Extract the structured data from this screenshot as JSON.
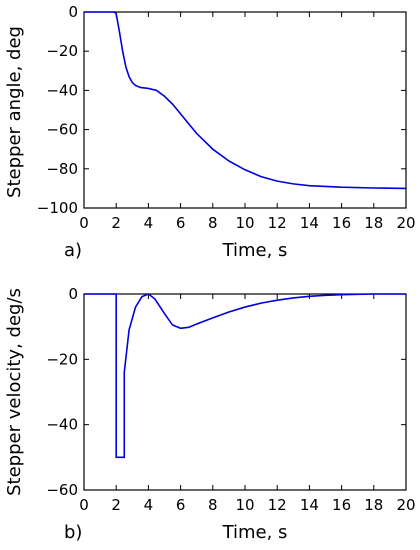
{
  "chart_data": [
    {
      "type": "line",
      "panel_label": "a)",
      "xlabel": "Time, s",
      "ylabel": "Stepper angle, deg",
      "xlim": [
        0,
        20
      ],
      "ylim": [
        -100,
        0
      ],
      "xticks": [
        0,
        2,
        4,
        6,
        8,
        10,
        12,
        14,
        16,
        18,
        20
      ],
      "yticks": [
        0,
        -20,
        -40,
        -60,
        -80,
        -100
      ],
      "grid": false,
      "line_color": "#0000dd",
      "series": [
        {
          "x": [
            0,
            1.9,
            2.0,
            2.2,
            2.4,
            2.6,
            2.8,
            3.0,
            3.2,
            3.5,
            4.0,
            4.5,
            5.0,
            5.5,
            6.0,
            6.5,
            7.0,
            7.5,
            8.0,
            9.0,
            10.0,
            11.0,
            12.0,
            13.0,
            14.0,
            16.0,
            18.0,
            20.0
          ],
          "y": [
            0,
            0,
            -1,
            -10,
            -20,
            -28,
            -33,
            -36,
            -37.5,
            -38.5,
            -39,
            -40,
            -43,
            -47,
            -52,
            -57,
            -62,
            -66,
            -70,
            -76,
            -80.5,
            -84,
            -86.3,
            -87.7,
            -88.6,
            -89.4,
            -89.8,
            -90
          ]
        }
      ]
    },
    {
      "type": "line",
      "panel_label": "b)",
      "xlabel": "Time, s",
      "ylabel": "Stepper velocity, deg/s",
      "xlim": [
        0,
        20
      ],
      "ylim": [
        -60,
        0
      ],
      "xticks": [
        0,
        2,
        4,
        6,
        8,
        10,
        12,
        14,
        16,
        18,
        20
      ],
      "yticks": [
        0,
        -20,
        -40,
        -60
      ],
      "grid": false,
      "line_color": "#0000dd",
      "series": [
        {
          "x": [
            0,
            2.0,
            2.0,
            2.5,
            2.5,
            2.8,
            3.2,
            3.6,
            4.0,
            4.4,
            5.0,
            5.5,
            6.0,
            6.5,
            7.0,
            8.0,
            9.0,
            10.0,
            11.0,
            12.0,
            13.0,
            14.0,
            15.0,
            16.0,
            18.0,
            20.0
          ],
          "y": [
            0,
            0,
            -50,
            -50,
            -24,
            -11,
            -4,
            -0.8,
            0,
            -1.5,
            -6,
            -9.5,
            -10.5,
            -10.2,
            -9.2,
            -7.3,
            -5.5,
            -4.0,
            -2.8,
            -1.9,
            -1.2,
            -0.7,
            -0.4,
            -0.2,
            0,
            0
          ]
        }
      ]
    }
  ]
}
